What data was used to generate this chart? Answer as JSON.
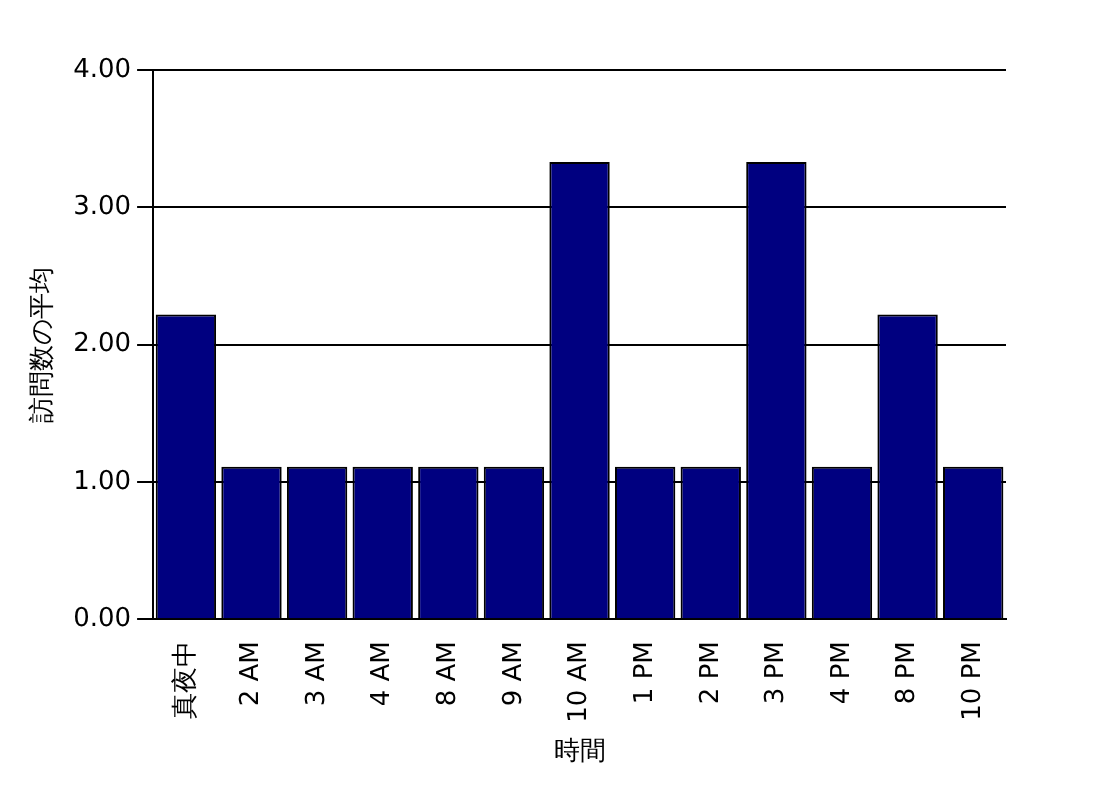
{
  "chart_data": {
    "type": "bar",
    "xlabel": "時間",
    "ylabel": "訪問数の平均",
    "categories": [
      "真夜中",
      "2 AM",
      "3 AM",
      "4 AM",
      "8 AM",
      "9 AM",
      "10 AM",
      "1 PM",
      "2 PM",
      "3 PM",
      "4 PM",
      "8 PM",
      "10 PM"
    ],
    "values": [
      2.22,
      1.11,
      1.11,
      1.11,
      1.11,
      1.11,
      3.33,
      1.11,
      1.11,
      3.33,
      1.11,
      2.22,
      1.11
    ],
    "color": "#000080",
    "ylim": [
      0,
      4
    ],
    "yticks": [
      {
        "value": 0,
        "label": "0.00"
      },
      {
        "value": 1,
        "label": "1.00"
      },
      {
        "value": 2,
        "label": "2.00"
      },
      {
        "value": 3,
        "label": "3.00"
      },
      {
        "value": 4,
        "label": "4.00"
      }
    ],
    "grid": "y",
    "legend": false
  }
}
